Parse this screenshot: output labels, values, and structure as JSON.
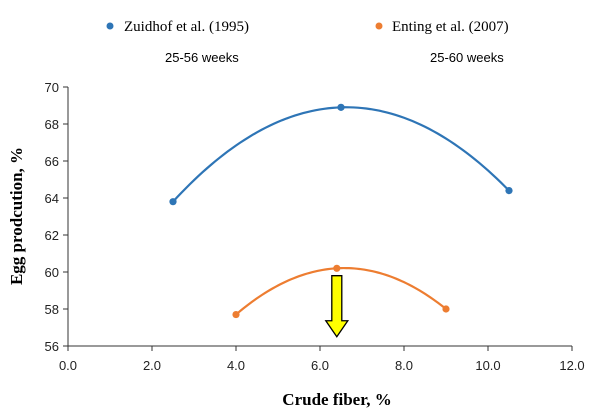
{
  "chart_data": {
    "type": "scatter",
    "title": "",
    "xlabel": "Crude fiber, %",
    "ylabel": "Egg prodcution, %",
    "xlim": [
      0,
      12
    ],
    "ylim": [
      56,
      70
    ],
    "x_ticks": [
      "0.0",
      "2.0",
      "4.0",
      "6.0",
      "8.0",
      "10.0",
      "12.0"
    ],
    "y_ticks": [
      "56",
      "58",
      "60",
      "62",
      "64",
      "66",
      "68",
      "70"
    ],
    "grid": false,
    "legend_position": "top",
    "series": [
      {
        "name": "Zuidhof et al. (1995)",
        "subtitle": "25-56 weeks",
        "color": "#2e75b6",
        "x": [
          2.5,
          6.5,
          10.5
        ],
        "y": [
          63.8,
          68.9,
          64.4
        ]
      },
      {
        "name": "Enting et al. (2007)",
        "subtitle": "25-60 weeks",
        "color": "#ed7d31",
        "x": [
          4.0,
          6.4,
          9.0
        ],
        "y": [
          57.7,
          60.2,
          58.0
        ]
      }
    ],
    "annotation": {
      "type": "arrow-down",
      "color": "#ffff00",
      "x": 6.4,
      "y_top": 59.8,
      "y_bottom": 56.5
    }
  }
}
